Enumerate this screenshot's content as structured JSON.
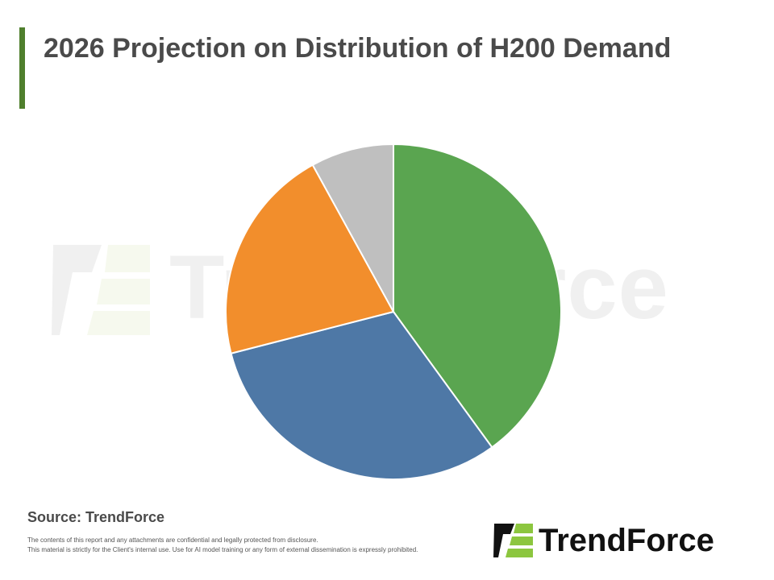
{
  "header": {
    "title": "2026 Projection on Distribution of H200 Demand"
  },
  "chart_data": {
    "type": "pie",
    "title": "2026 Projection on Distribution of H200 Demand",
    "categories": [
      "",
      "",
      "",
      ""
    ],
    "values": [
      40,
      31,
      21,
      8
    ],
    "colors": [
      "#5aa550",
      "#4e78a6",
      "#f28e2c",
      "#bfbfbf"
    ],
    "start_angle_deg": 0,
    "direction": "clockwise",
    "legend": "none"
  },
  "footer": {
    "source": "Source: TrendForce",
    "disclaimer_line1": "The contents of this report and any attachments are confidential and legally protected from disclosure.",
    "disclaimer_line2": "This material is strictly for the Client's internal use. Use for AI model training or any form of external dissemination is expressly prohibited."
  },
  "brand": {
    "logo_text": "TrendForce",
    "watermark_text": "TrendForce",
    "accent_color": "#4f7f2d",
    "logo_green": "#8cc63f"
  }
}
